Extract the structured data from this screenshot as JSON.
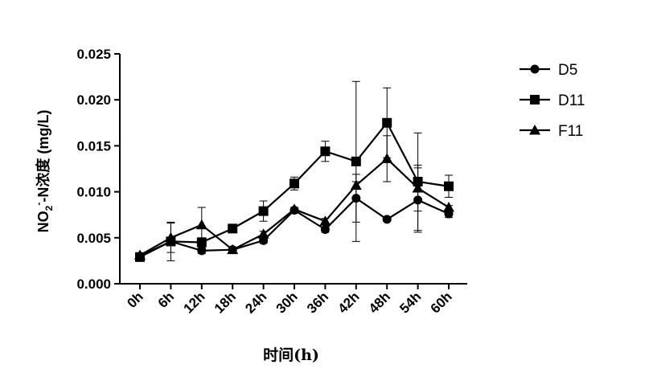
{
  "chart_data": {
    "type": "line",
    "title": "",
    "xlabel": "时间(h)",
    "ylabel": {
      "prefix": "NO",
      "sub": "2",
      "sup": "-",
      "suffix": "-N浓度 (mg/L)"
    },
    "categories": [
      "0h",
      "6h",
      "12h",
      "18h",
      "24h",
      "30h",
      "36h",
      "42h",
      "48h",
      "54h",
      "60h"
    ],
    "ylim": [
      0,
      0.025
    ],
    "yticks": [
      "0.000",
      "0.005",
      "0.010",
      "0.015",
      "0.020",
      "0.025"
    ],
    "grid": false,
    "legend_position": "right",
    "series": [
      {
        "name": "D5",
        "marker": "circle",
        "values": [
          0.003,
          0.0046,
          0.0036,
          0.0037,
          0.0047,
          0.008,
          0.0059,
          0.0093,
          0.007,
          0.0091,
          0.0076
        ],
        "errors": [
          0.0003,
          0.0002,
          0.0003,
          0.0002,
          0.0003,
          0.0002,
          0.0003,
          0.0026,
          0.0002,
          0.0035,
          0.0004
        ]
      },
      {
        "name": "D11",
        "marker": "square",
        "values": [
          0.0029,
          0.0046,
          0.0045,
          0.006,
          0.0079,
          0.0109,
          0.0144,
          0.0133,
          0.0175,
          0.0111,
          0.0106
        ],
        "errors": [
          0.0002,
          0.0021,
          0.0005,
          0.0003,
          0.0011,
          0.0007,
          0.0011,
          0.0087,
          0.0038,
          0.0053,
          0.0012
        ]
      },
      {
        "name": "F11",
        "marker": "triangle",
        "values": [
          0.0031,
          0.005,
          0.0064,
          0.0037,
          0.0054,
          0.0081,
          0.0068,
          0.0107,
          0.0136,
          0.0104,
          0.0083
        ],
        "errors": [
          0.0002,
          0.0016,
          0.0019,
          0.0002,
          0.0003,
          0.0002,
          0.0003,
          0.0004,
          0.0025,
          0.0025,
          0.0002
        ]
      }
    ]
  },
  "colors": {
    "line": "#000000",
    "background": "#ffffff"
  }
}
